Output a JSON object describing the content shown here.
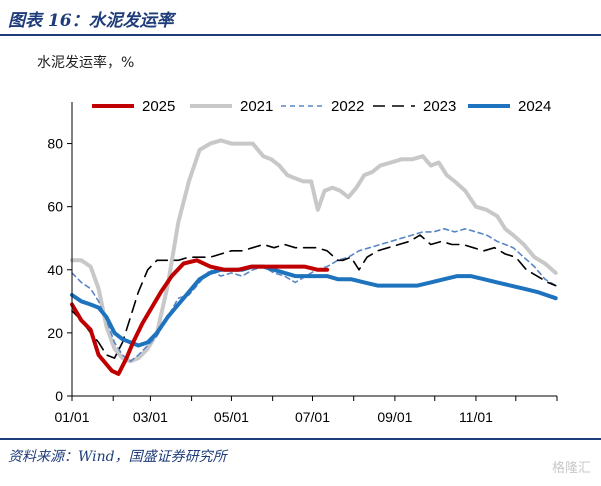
{
  "figure_title": "图表 16：水泥发运率",
  "unit_label": "水泥发运率，%",
  "source_note": "资料来源：Wind，国盛证券研究所",
  "watermark": "格隆汇",
  "chart_data": {
    "type": "line",
    "xlabel": "",
    "ylabel": "",
    "x_ticks": [
      "01/01",
      "03/01",
      "05/01",
      "07/01",
      "09/01",
      "11/01"
    ],
    "x_tick_days": [
      0,
      59,
      120,
      181,
      243,
      304
    ],
    "x_range_days": [
      0,
      365
    ],
    "ylim": [
      0,
      90
    ],
    "y_ticks": [
      0,
      20,
      40,
      60,
      80
    ],
    "grid": false,
    "legend_position": "top",
    "series": [
      {
        "name": "2025",
        "color": "#c00000",
        "dash": "solid",
        "width": 4,
        "x": [
          0,
          7,
          14,
          20,
          26,
          30,
          35,
          41,
          46,
          53,
          60,
          67,
          75,
          84,
          94,
          104,
          115,
          125,
          135,
          145,
          155,
          165,
          175,
          185,
          192
        ],
        "y": [
          29,
          24,
          21,
          13,
          10,
          8,
          7,
          12,
          17,
          23,
          28,
          33,
          38,
          42,
          43,
          41,
          40,
          40,
          41,
          41,
          41,
          41,
          41,
          40,
          40
        ]
      },
      {
        "name": "2021",
        "color": "#c8c8c8",
        "dash": "solid",
        "width": 4,
        "x": [
          0,
          7,
          14,
          20,
          26,
          32,
          38,
          44,
          50,
          57,
          64,
          72,
          80,
          88,
          96,
          104,
          112,
          120,
          128,
          136,
          144,
          150,
          156,
          162,
          168,
          174,
          180,
          185,
          190,
          196,
          202,
          208,
          214,
          220,
          226,
          232,
          240,
          248,
          256,
          264,
          270,
          276,
          282,
          288,
          296,
          304,
          312,
          320,
          326,
          332,
          340,
          348,
          356,
          364
        ],
        "y": [
          43,
          43,
          41,
          34,
          22,
          15,
          12,
          11,
          12,
          15,
          20,
          35,
          55,
          68,
          78,
          80,
          81,
          80,
          80,
          80,
          76,
          75,
          73,
          70,
          69,
          68,
          68,
          59,
          65,
          66,
          65,
          63,
          66,
          70,
          71,
          73,
          74,
          75,
          75,
          76,
          73,
          74,
          70,
          68,
          65,
          60,
          59,
          57,
          53,
          51,
          48,
          44,
          42,
          39
        ]
      },
      {
        "name": "2022",
        "color": "#5b86c5",
        "dash": "dashed",
        "width": 1.6,
        "x": [
          0,
          7,
          14,
          20,
          26,
          32,
          38,
          44,
          50,
          57,
          64,
          72,
          80,
          88,
          96,
          104,
          112,
          120,
          128,
          136,
          144,
          152,
          160,
          168,
          176,
          184,
          192,
          200,
          208,
          216,
          224,
          232,
          240,
          248,
          256,
          264,
          272,
          280,
          288,
          296,
          304,
          312,
          320,
          326,
          332,
          340,
          348,
          356,
          364
        ],
        "y": [
          39,
          36,
          34,
          30,
          24,
          17,
          13,
          11,
          13,
          16,
          19,
          25,
          31,
          32,
          36,
          40,
          38,
          39,
          38,
          40,
          41,
          39,
          38,
          36,
          38,
          40,
          41,
          43,
          44,
          46,
          47,
          48,
          49,
          50,
          51,
          52,
          52,
          53,
          52,
          53,
          52,
          51,
          49,
          48,
          47,
          44,
          41,
          37,
          35
        ]
      },
      {
        "name": "2023",
        "color": "#000000",
        "dash": "longdash",
        "width": 1.6,
        "x": [
          0,
          7,
          14,
          20,
          26,
          32,
          38,
          44,
          50,
          57,
          64,
          72,
          80,
          88,
          96,
          104,
          112,
          120,
          128,
          136,
          144,
          152,
          160,
          168,
          176,
          184,
          192,
          200,
          204,
          210,
          216,
          222,
          230,
          238,
          246,
          254,
          262,
          270,
          278,
          286,
          294,
          302,
          310,
          318,
          326,
          334,
          342,
          350,
          358,
          364
        ],
        "y": [
          27,
          24,
          20,
          17,
          13,
          12,
          17,
          25,
          33,
          40,
          43,
          43,
          43,
          44,
          44,
          44,
          45,
          46,
          46,
          47,
          48,
          47,
          48,
          47,
          47,
          47,
          46,
          43,
          43,
          44,
          40,
          44,
          46,
          47,
          48,
          49,
          51,
          48,
          49,
          48,
          48,
          47,
          46,
          47,
          45,
          44,
          40,
          38,
          36,
          35
        ]
      },
      {
        "name": "2024",
        "color": "#1e73be",
        "dash": "solid",
        "width": 4,
        "x": [
          0,
          7,
          14,
          20,
          26,
          32,
          38,
          44,
          50,
          57,
          64,
          72,
          80,
          88,
          96,
          104,
          112,
          120,
          128,
          136,
          144,
          152,
          160,
          168,
          176,
          184,
          192,
          200,
          210,
          220,
          230,
          240,
          250,
          260,
          270,
          280,
          290,
          300,
          310,
          320,
          330,
          340,
          350,
          364
        ],
        "y": [
          32,
          30,
          29,
          28,
          25,
          20,
          18,
          17,
          16,
          17,
          20,
          25,
          29,
          33,
          37,
          39,
          40,
          40,
          40,
          41,
          41,
          40,
          39,
          38,
          38,
          38,
          38,
          37,
          37,
          36,
          35,
          35,
          35,
          35,
          36,
          37,
          38,
          38,
          37,
          36,
          35,
          34,
          33,
          31
        ]
      }
    ]
  }
}
